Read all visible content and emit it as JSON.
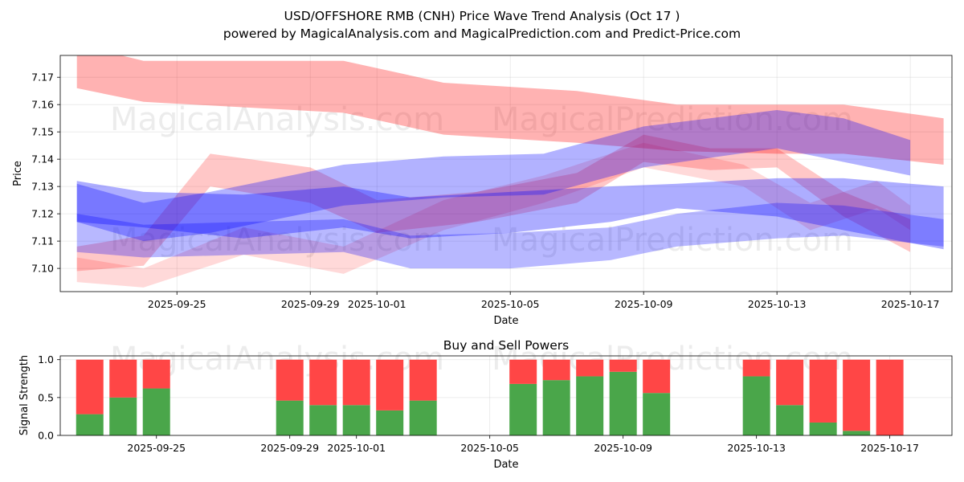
{
  "chart_data": [
    {
      "type": "area",
      "title": "USD/OFFSHORE RMB (CNH) Price Wave Trend Analysis (Oct 17 )",
      "subtitle": "powered by MagicalAnalysis.com and MagicalPrediction.com and Predict-Price.com",
      "xlabel": "Date",
      "ylabel": "Price",
      "xlim": [
        "2025-09-21T12:00",
        "2025-10-18T06:00"
      ],
      "ylim": [
        7.0915,
        7.178
      ],
      "xticks": [
        "2025-09-25",
        "2025-09-29",
        "2025-10-01",
        "2025-10-05",
        "2025-10-09",
        "2025-10-13",
        "2025-10-17"
      ],
      "yticks": [
        7.1,
        7.11,
        7.12,
        7.13,
        7.14,
        7.15,
        7.16,
        7.17
      ],
      "ytick_labels": [
        "7.10",
        "7.11",
        "7.12",
        "7.13",
        "7.14",
        "7.15",
        "7.16",
        "7.17"
      ],
      "grid": true,
      "series": [
        {
          "name": "red wave upper",
          "color": "#ff0000",
          "opacity": 0.3,
          "x": [
            "2025-09-22",
            "2025-09-24",
            "2025-09-30",
            "2025-10-03",
            "2025-10-07",
            "2025-10-10",
            "2025-10-13",
            "2025-10-15",
            "2025-10-18"
          ],
          "upper": [
            7.182,
            7.176,
            7.176,
            7.168,
            7.165,
            7.16,
            7.16,
            7.16,
            7.155
          ],
          "lower": [
            7.166,
            7.161,
            7.157,
            7.149,
            7.146,
            7.143,
            7.142,
            7.142,
            7.138
          ]
        },
        {
          "name": "red wave middle",
          "color": "#ff0000",
          "opacity": 0.22,
          "x": [
            "2025-09-22",
            "2025-09-24",
            "2025-09-26",
            "2025-09-29",
            "2025-10-01",
            "2025-10-04",
            "2025-10-07",
            "2025-10-09",
            "2025-10-11",
            "2025-10-13",
            "2025-10-15",
            "2025-10-17"
          ],
          "upper": [
            7.108,
            7.112,
            7.142,
            7.137,
            7.125,
            7.128,
            7.135,
            7.149,
            7.144,
            7.144,
            7.128,
            7.118
          ],
          "lower": [
            7.099,
            7.101,
            7.13,
            7.124,
            7.113,
            7.117,
            7.124,
            7.139,
            7.136,
            7.137,
            7.119,
            7.106
          ]
        },
        {
          "name": "red wave lower",
          "color": "#ff0000",
          "opacity": 0.15,
          "x": [
            "2025-09-22",
            "2025-09-24",
            "2025-09-27",
            "2025-09-30",
            "2025-10-03",
            "2025-10-06",
            "2025-10-09",
            "2025-10-12",
            "2025-10-14",
            "2025-10-16",
            "2025-10-17"
          ],
          "upper": [
            7.104,
            7.1,
            7.115,
            7.108,
            7.125,
            7.134,
            7.146,
            7.138,
            7.124,
            7.132,
            7.123
          ],
          "lower": [
            7.095,
            7.093,
            7.105,
            7.098,
            7.114,
            7.124,
            7.137,
            7.13,
            7.114,
            7.122,
            7.114
          ]
        },
        {
          "name": "blue wave upper",
          "color": "#0000ff",
          "opacity": 0.3,
          "x": [
            "2025-09-22",
            "2025-09-24",
            "2025-09-26",
            "2025-09-30",
            "2025-10-03",
            "2025-10-06",
            "2025-10-09",
            "2025-10-13",
            "2025-10-15",
            "2025-10-17"
          ],
          "upper": [
            7.131,
            7.124,
            7.128,
            7.138,
            7.141,
            7.142,
            7.152,
            7.158,
            7.155,
            7.147
          ],
          "lower": [
            7.117,
            7.11,
            7.113,
            7.123,
            7.126,
            7.127,
            7.137,
            7.144,
            7.139,
            7.134
          ]
        },
        {
          "name": "blue wave middle",
          "color": "#0000ff",
          "opacity": 0.32,
          "x": [
            "2025-09-22",
            "2025-09-24",
            "2025-09-27",
            "2025-09-30",
            "2025-10-02",
            "2025-10-05",
            "2025-10-08",
            "2025-10-10",
            "2025-10-13",
            "2025-10-15",
            "2025-10-18"
          ],
          "upper": [
            7.132,
            7.128,
            7.127,
            7.13,
            7.126,
            7.128,
            7.13,
            7.131,
            7.133,
            7.133,
            7.13
          ],
          "lower": [
            7.117,
            7.115,
            7.111,
            7.115,
            7.111,
            7.113,
            7.117,
            7.122,
            7.119,
            7.114,
            7.107
          ]
        },
        {
          "name": "blue wave lower",
          "color": "#0000ff",
          "opacity": 0.28,
          "x": [
            "2025-09-22",
            "2025-09-24",
            "2025-09-27",
            "2025-09-30",
            "2025-10-02",
            "2025-10-05",
            "2025-10-08",
            "2025-10-10",
            "2025-10-13",
            "2025-10-15",
            "2025-10-18"
          ],
          "upper": [
            7.12,
            7.116,
            7.117,
            7.118,
            7.112,
            7.113,
            7.115,
            7.12,
            7.124,
            7.123,
            7.118
          ],
          "lower": [
            7.106,
            7.104,
            7.105,
            7.106,
            7.1,
            7.1,
            7.103,
            7.108,
            7.111,
            7.112,
            7.108
          ]
        }
      ]
    },
    {
      "type": "bar",
      "stacked": true,
      "title": "Buy and Sell Powers",
      "xlabel": "Date",
      "ylabel": "Signal Strength",
      "ylim": [
        0,
        1.05
      ],
      "yticks": [
        0.0,
        0.5,
        1.0
      ],
      "ytick_labels": [
        "0.0",
        "0.5",
        "1.0"
      ],
      "xticks": [
        "2025-09-25",
        "2025-09-29",
        "2025-10-01",
        "2025-10-05",
        "2025-10-09",
        "2025-10-13",
        "2025-10-17"
      ],
      "dates": [
        "2025-09-23",
        "2025-09-24",
        "2025-09-25",
        "2025-09-29",
        "2025-09-30",
        "2025-10-01",
        "2025-10-02",
        "2025-10-03",
        "2025-10-06",
        "2025-10-07",
        "2025-10-08",
        "2025-10-09",
        "2025-10-10",
        "2025-10-13",
        "2025-10-14",
        "2025-10-15",
        "2025-10-16",
        "2025-10-17"
      ],
      "series": [
        {
          "name": "Buy",
          "color": "#4aa64a",
          "values": [
            0.28,
            0.5,
            0.62,
            0.46,
            0.4,
            0.4,
            0.33,
            0.46,
            0.68,
            0.73,
            0.78,
            0.84,
            0.56,
            0.78,
            0.4,
            0.17,
            0.06,
            0.0
          ]
        },
        {
          "name": "Sell",
          "color": "#ff4646",
          "values": [
            0.72,
            0.5,
            0.38,
            0.54,
            0.6,
            0.6,
            0.67,
            0.54,
            0.32,
            0.27,
            0.22,
            0.16,
            0.44,
            0.22,
            0.6,
            0.83,
            0.94,
            1.0
          ]
        }
      ]
    }
  ],
  "watermarks": [
    "MagicalAnalysis.com",
    "MagicalPrediction.com"
  ]
}
